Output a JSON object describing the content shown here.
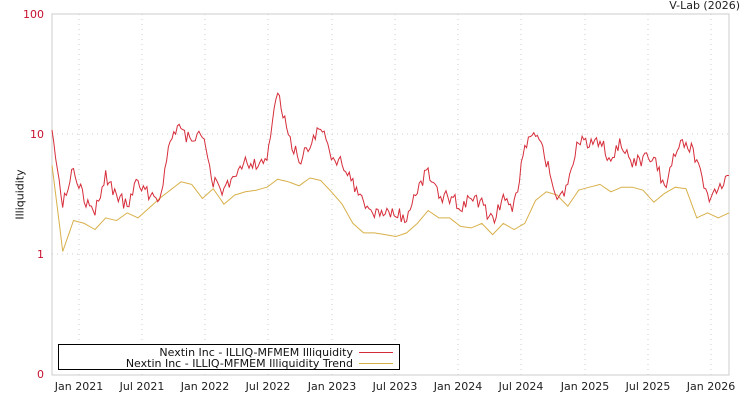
{
  "credit": "V-Lab (2026)",
  "chart_data": {
    "type": "line",
    "title": "",
    "xlabel": "",
    "ylabel": "Illiquidity",
    "yscale": "log",
    "ylim": [
      0.1,
      100
    ],
    "y_ticks": [
      "100",
      "10",
      "1",
      "0"
    ],
    "x_ticks": [
      "Jan 2021",
      "Jul 2021",
      "Jan 2022",
      "Jul 2022",
      "Jan 2023",
      "Jul 2023",
      "Jan 2024",
      "Jul 2024",
      "Jan 2025",
      "Jul 2025",
      "Jan 2026"
    ],
    "grid": true,
    "legend_position": "bottom-left",
    "x": [
      "2020-11",
      "2020-12",
      "2021-01",
      "2021-02",
      "2021-03",
      "2021-04",
      "2021-05",
      "2021-06",
      "2021-07",
      "2021-08",
      "2021-09",
      "2021-10",
      "2021-11",
      "2021-12",
      "2022-01",
      "2022-02",
      "2022-03",
      "2022-04",
      "2022-05",
      "2022-06",
      "2022-07",
      "2022-08",
      "2022-09",
      "2022-10",
      "2022-11",
      "2022-12",
      "2023-01",
      "2023-02",
      "2023-03",
      "2023-04",
      "2023-05",
      "2023-06",
      "2023-07",
      "2023-08",
      "2023-09",
      "2023-10",
      "2023-11",
      "2023-12",
      "2024-01",
      "2024-02",
      "2024-03",
      "2024-04",
      "2024-05",
      "2024-06",
      "2024-07",
      "2024-08",
      "2024-09",
      "2024-10",
      "2024-11",
      "2024-12",
      "2025-01",
      "2025-02",
      "2025-03",
      "2025-04",
      "2025-05",
      "2025-06",
      "2025-07",
      "2025-08",
      "2025-09",
      "2025-10",
      "2025-11",
      "2025-12",
      "2026-01",
      "2026-02"
    ],
    "series": [
      {
        "name": "Nextin Inc - ILLIQ-MFMEM Illiquidity",
        "color": "#d62d3a",
        "values": [
          12.0,
          2.5,
          5.5,
          2.8,
          2.2,
          4.5,
          3.0,
          2.6,
          4.0,
          3.2,
          2.9,
          9.0,
          11.0,
          8.5,
          10.0,
          4.0,
          3.2,
          4.8,
          6.0,
          5.5,
          6.5,
          22.0,
          9.5,
          6.0,
          8.0,
          12.0,
          6.0,
          6.0,
          4.0,
          2.5,
          2.2,
          2.2,
          2.2,
          2.0,
          3.5,
          5.0,
          3.0,
          3.0,
          2.5,
          2.8,
          2.6,
          1.9,
          2.8,
          2.5,
          8.0,
          10.0,
          6.0,
          3.0,
          3.5,
          9.0,
          8.5,
          9.0,
          6.0,
          8.5,
          6.0,
          6.0,
          7.0,
          3.5,
          7.0,
          9.0,
          6.0,
          3.0,
          3.5,
          4.5
        ]
      },
      {
        "name": "Nextin Inc - ILLIQ-MFMEM Illiquidity Trend",
        "color": "#d8b04a",
        "values": [
          5.5,
          1.05,
          1.9,
          1.8,
          1.6,
          2.0,
          1.9,
          2.2,
          2.0,
          2.4,
          2.9,
          3.4,
          4.0,
          3.8,
          2.9,
          3.5,
          2.6,
          3.1,
          3.3,
          3.4,
          3.6,
          4.2,
          4.0,
          3.7,
          4.3,
          4.1,
          3.3,
          2.6,
          1.8,
          1.5,
          1.5,
          1.45,
          1.4,
          1.5,
          1.8,
          2.3,
          2.0,
          2.0,
          1.7,
          1.65,
          1.8,
          1.45,
          1.8,
          1.6,
          1.8,
          2.8,
          3.3,
          3.1,
          2.5,
          3.4,
          3.6,
          3.8,
          3.3,
          3.6,
          3.6,
          3.4,
          2.7,
          3.2,
          3.6,
          3.5,
          2.0,
          2.2,
          2.0,
          2.2
        ]
      }
    ]
  },
  "legend": {
    "items": [
      {
        "label": "Nextin Inc - ILLIQ-MFMEM Illiquidity",
        "color": "#d62d3a"
      },
      {
        "label": "Nextin Inc - ILLIQ-MFMEM Illiquidity Trend",
        "color": "#d8b04a"
      }
    ]
  }
}
